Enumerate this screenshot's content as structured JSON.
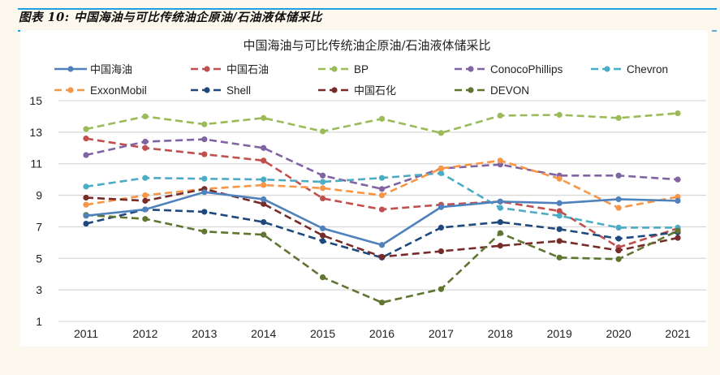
{
  "page": {
    "caption": "图表 10:  中国海油与可比传统油企原油/石油液体储采比",
    "accent_color": "#1fa0e0",
    "background_color": "#fdf8ee"
  },
  "chart_data": {
    "type": "line",
    "title": "中国海油与可比传统油企原油/石油液体储采比",
    "xlabel": "",
    "ylabel": "",
    "categories": [
      "2011",
      "2012",
      "2013",
      "2014",
      "2015",
      "2016",
      "2017",
      "2018",
      "2019",
      "2020",
      "2021"
    ],
    "ylim": [
      1,
      15
    ],
    "yticks": [
      1,
      3,
      5,
      7,
      9,
      11,
      13,
      15
    ],
    "grid": true,
    "legend": "top",
    "series": [
      {
        "name": "中国海油",
        "color": "#4f81bd",
        "style": "solid",
        "values": [
          7.7,
          8.1,
          9.2,
          8.75,
          6.9,
          5.85,
          8.25,
          8.6,
          8.5,
          8.75,
          8.65
        ]
      },
      {
        "name": "中国石油",
        "color": "#c0504d",
        "style": "dashed",
        "values": [
          12.6,
          12.0,
          11.6,
          11.2,
          8.8,
          8.1,
          8.4,
          8.6,
          8.0,
          5.7,
          6.9
        ]
      },
      {
        "name": "BP",
        "color": "#9bbb59",
        "style": "dashed",
        "values": [
          13.2,
          14.0,
          13.5,
          13.9,
          13.05,
          13.85,
          12.95,
          14.05,
          14.1,
          13.9,
          14.2
        ]
      },
      {
        "name": "ConocoPhillips",
        "color": "#8064a2",
        "style": "dashed",
        "values": [
          11.55,
          12.4,
          12.55,
          12.0,
          10.25,
          9.4,
          10.7,
          10.95,
          10.25,
          10.25,
          10.0
        ]
      },
      {
        "name": "Chevron",
        "color": "#4bacc6",
        "style": "dashed",
        "values": [
          9.55,
          10.1,
          10.05,
          10.0,
          9.85,
          10.1,
          10.4,
          8.2,
          7.7,
          6.95,
          6.95
        ]
      },
      {
        "name": "ExxonMobil",
        "color": "#f79646",
        "style": "dashed",
        "values": [
          8.4,
          9.0,
          9.4,
          9.65,
          9.45,
          9.0,
          10.7,
          11.2,
          10.05,
          8.2,
          8.9
        ]
      },
      {
        "name": "Shell",
        "color": "#1f497d",
        "style": "dashed",
        "values": [
          7.2,
          8.1,
          7.95,
          7.3,
          6.1,
          5.05,
          6.95,
          7.3,
          6.85,
          6.25,
          6.65
        ]
      },
      {
        "name": "中国石化",
        "color": "#772c2a",
        "style": "dashed",
        "values": [
          8.85,
          8.65,
          9.4,
          8.45,
          6.45,
          5.1,
          5.45,
          5.8,
          6.1,
          5.5,
          6.3
        ]
      },
      {
        "name": "DEVON",
        "color": "#5f7530",
        "style": "dashed",
        "values": [
          7.75,
          7.5,
          6.7,
          6.5,
          3.8,
          2.2,
          3.05,
          6.6,
          5.05,
          4.95,
          6.75
        ]
      }
    ]
  }
}
